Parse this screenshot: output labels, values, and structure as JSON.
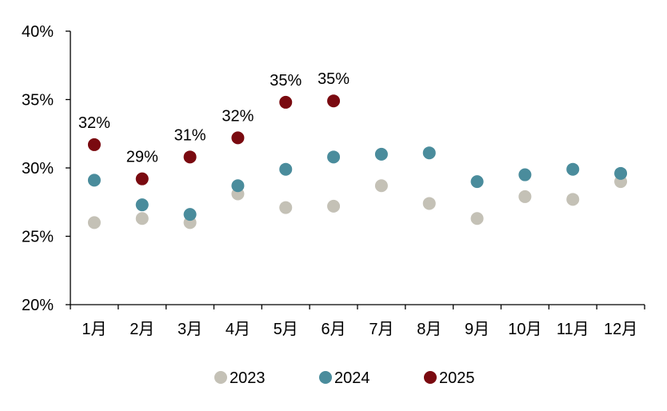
{
  "chart_data": {
    "type": "scatter",
    "categories": [
      "1月",
      "2月",
      "3月",
      "4月",
      "5月",
      "6月",
      "7月",
      "8月",
      "9月",
      "10月",
      "11月",
      "12月"
    ],
    "y_ticks": [
      "20%",
      "25%",
      "30%",
      "35%",
      "40%"
    ],
    "ylim": [
      20,
      40
    ],
    "y_unit": "%",
    "grid": false,
    "legend_position": "bottom",
    "series": [
      {
        "name": "2023",
        "color": "#c4c1b6",
        "values": [
          26.0,
          26.3,
          26.0,
          28.1,
          27.1,
          27.2,
          28.7,
          27.4,
          26.3,
          27.9,
          27.7,
          29.0
        ]
      },
      {
        "name": "2024",
        "color": "#4a8c9c",
        "values": [
          29.1,
          27.3,
          26.6,
          28.7,
          29.9,
          30.8,
          31.0,
          31.1,
          29.0,
          29.5,
          29.9,
          29.6
        ]
      },
      {
        "name": "2025",
        "color": "#7a0a10",
        "values": [
          31.7,
          29.2,
          30.8,
          32.2,
          34.8,
          34.9,
          null,
          null,
          null,
          null,
          null,
          null
        ],
        "labels": [
          "32%",
          "29%",
          "31%",
          "32%",
          "35%",
          "35%"
        ]
      }
    ]
  }
}
